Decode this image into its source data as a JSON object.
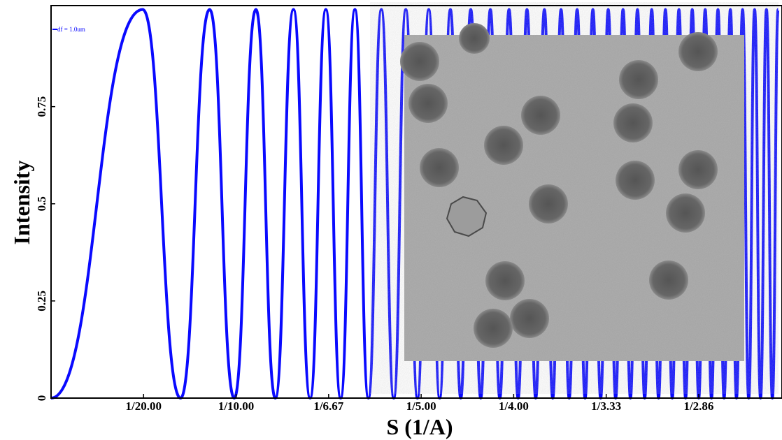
{
  "chart_data": {
    "type": "line",
    "x_label": "S (1/A)",
    "y_label": "Intensity",
    "x": [
      0,
      0.0495,
      0.07,
      0.0857,
      0.099,
      0.1107,
      0.1212,
      0.131,
      0.14,
      0.1485,
      0.1565,
      0.1642,
      0.1715,
      0.1785,
      0.1852,
      0.1917,
      0.198,
      0.2041,
      0.21,
      0.2158,
      0.2214,
      0.2268,
      0.2322,
      0.2374,
      0.2425,
      0.2475,
      0.2524,
      0.2572,
      0.2619,
      0.2666,
      0.2711,
      0.2756,
      0.28,
      0.2843,
      0.2886,
      0.2928,
      0.297,
      0.3011,
      0.3051,
      0.3091,
      0.3131,
      0.3169,
      0.3208,
      0.3246,
      0.3283,
      0.332,
      0.3357,
      0.3393,
      0.3429,
      0.3465,
      0.35,
      0.3535,
      0.3569,
      0.3604,
      0.3637,
      0.3671,
      0.3704,
      0.3737,
      0.377,
      0.3802,
      0.3834,
      0.3866,
      0.3898,
      0.3929
    ],
    "series": [
      {
        "name": "df = 1.0um",
        "color": "#0a0aff",
        "values": [
          0,
          1,
          0,
          1,
          0,
          1,
          0,
          1,
          0,
          1,
          0,
          1,
          0,
          1,
          0,
          1,
          0,
          1,
          0,
          1,
          0,
          1,
          0,
          1,
          0,
          1,
          0,
          1,
          0,
          1,
          0,
          1,
          0,
          1,
          0,
          1,
          0,
          1,
          0,
          1,
          0,
          1,
          0,
          1,
          0,
          1,
          0,
          1,
          0,
          1,
          0,
          1,
          0,
          1,
          0,
          1,
          0,
          1,
          0,
          1,
          0,
          1,
          0,
          1
        ]
      }
    ],
    "xlim": [
      0,
      0.395
    ],
    "ylim": [
      0,
      1.01
    ],
    "xticks": [
      {
        "value": 0.05,
        "label": "1/20.00"
      },
      {
        "value": 0.1,
        "label": "1/10.00"
      },
      {
        "value": 0.15,
        "label": "1/6.67"
      },
      {
        "value": 0.2,
        "label": "1/5.00"
      },
      {
        "value": 0.25,
        "label": "1/4.00"
      },
      {
        "value": 0.3,
        "label": "1/3.33"
      },
      {
        "value": 0.35,
        "label": "1/2.86"
      }
    ],
    "yticks": [
      0,
      0.25,
      0.5,
      0.75
    ],
    "legend": "upper left"
  }
}
